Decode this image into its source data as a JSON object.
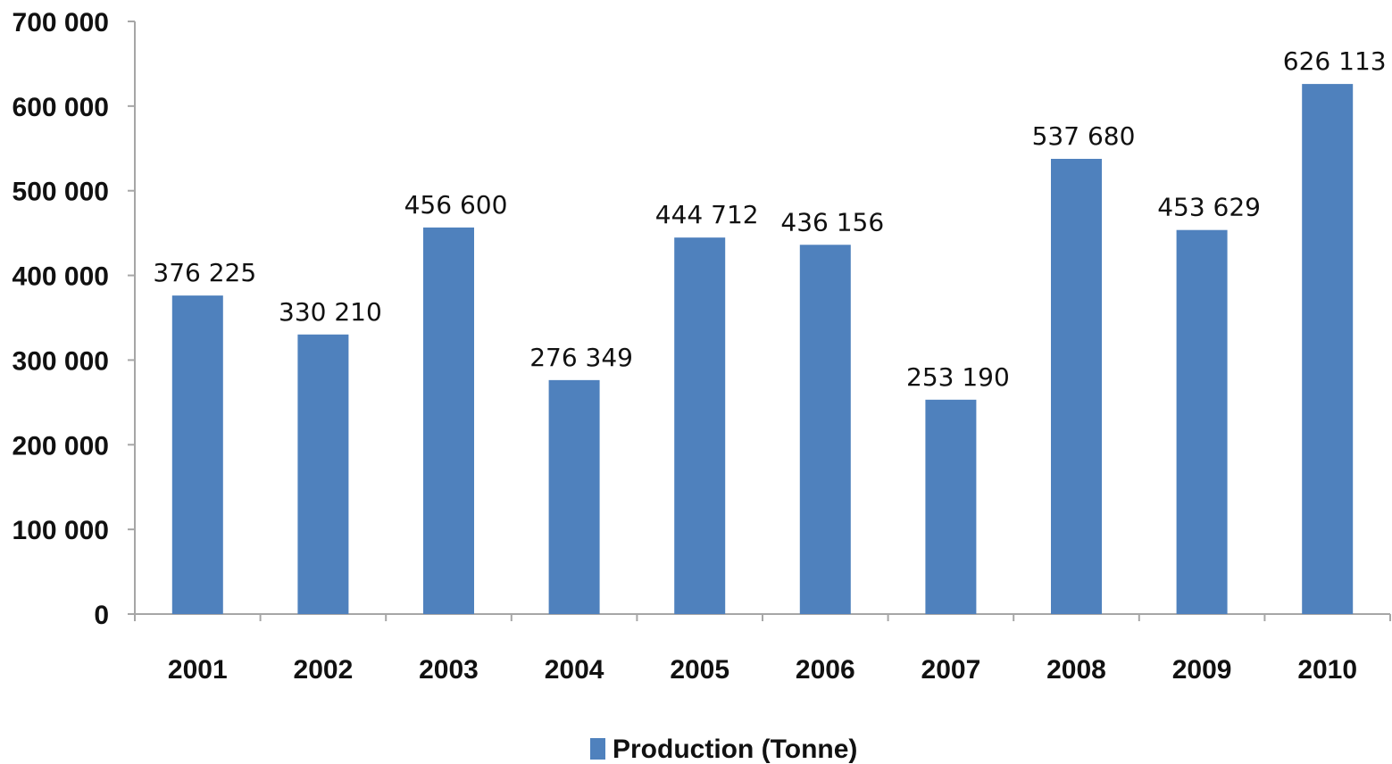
{
  "chart_data": {
    "type": "bar",
    "categories": [
      "2001",
      "2002",
      "2003",
      "2004",
      "2005",
      "2006",
      "2007",
      "2008",
      "2009",
      "2010"
    ],
    "series": [
      {
        "name": "Production (Tonne)",
        "values": [
          376225,
          330210,
          456600,
          276349,
          444712,
          436156,
          253190,
          537680,
          453629,
          626113
        ],
        "data_labels": [
          "376 225",
          "330 210",
          "456 600",
          "276 349",
          "444 712",
          "436 156",
          "253 190",
          "537 680",
          "453 629",
          "626 113"
        ],
        "color": "#4f81bd"
      }
    ],
    "ylim": [
      0,
      700000
    ],
    "yticks": [
      0,
      100000,
      200000,
      300000,
      400000,
      500000,
      600000,
      700000
    ],
    "ytick_labels": [
      "0",
      "100 000",
      "200 000",
      "300 000",
      "400 000",
      "500 000",
      "600 000",
      "700 000"
    ],
    "grid": false,
    "legend_position": "bottom",
    "title": "",
    "xlabel": "",
    "ylabel": ""
  }
}
